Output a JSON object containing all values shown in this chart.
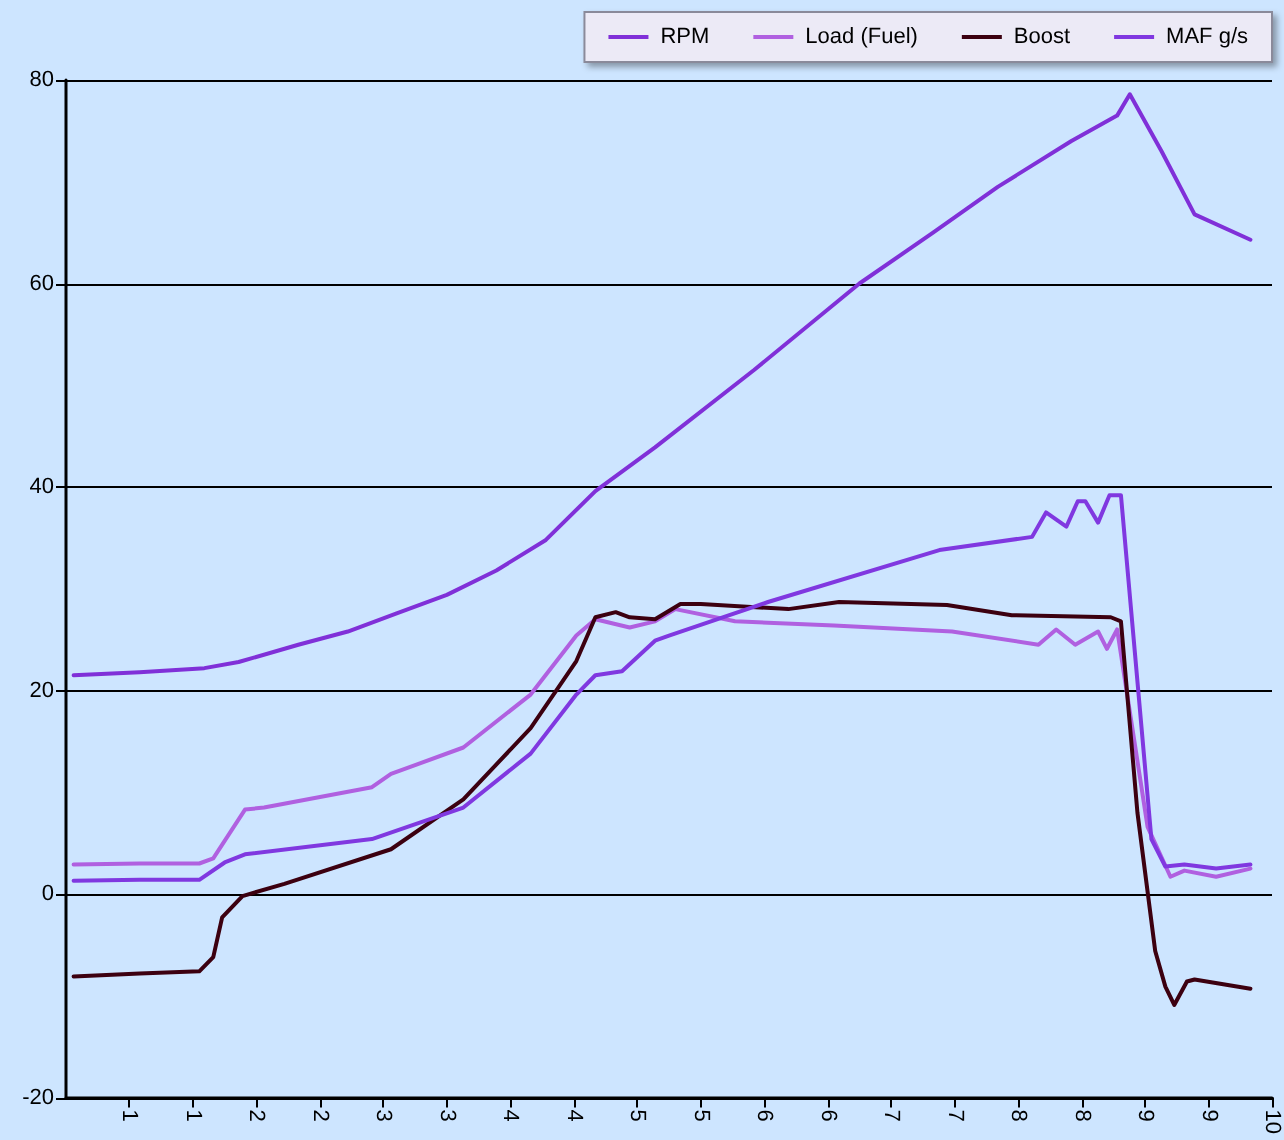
{
  "chart_data": {
    "type": "line",
    "series": [
      {
        "name": "RPM",
        "color": "#8030d8",
        "x": [
          0.06,
          0.58,
          1.09,
          1.36,
          1.83,
          2.22,
          2.61,
          3.0,
          3.39,
          3.78,
          4.17,
          4.64,
          5.42,
          6.25,
          6.83,
          7.34,
          7.92,
          8.28,
          8.38,
          8.63,
          8.89,
          9.33
        ],
        "values": [
          21.5,
          21.8,
          22.2,
          22.8,
          24.5,
          25.8,
          27.6,
          29.4,
          31.8,
          34.8,
          39.6,
          43.9,
          51.5,
          60,
          65,
          69.5,
          74,
          76.5,
          78.6,
          73,
          66.8,
          64.3
        ]
      },
      {
        "name": "Load (Fuel)",
        "color": "#b060e0",
        "x": [
          0.06,
          0.58,
          1.05,
          1.16,
          1.41,
          1.56,
          2.41,
          2.56,
          3.13,
          3.66,
          4.02,
          4.17,
          4.44,
          4.64,
          4.8,
          5.27,
          6.05,
          6.98,
          7.66,
          7.8,
          7.95,
          8.13,
          8.2,
          8.28,
          8.52,
          8.7,
          8.81,
          9.06,
          9.33
        ],
        "values": [
          2.9,
          3.0,
          3.0,
          3.5,
          8.3,
          8.5,
          10.5,
          11.8,
          14.4,
          19.6,
          25.4,
          27,
          26.2,
          26.8,
          28,
          26.8,
          26.4,
          25.8,
          24.5,
          26,
          24.5,
          25.8,
          24.1,
          26,
          6.6,
          1.7,
          2.3,
          1.7,
          2.5
        ]
      },
      {
        "name": "Boost",
        "color": "#3c0010",
        "x": [
          0.06,
          0.58,
          1.05,
          1.16,
          1.23,
          1.39,
          1.72,
          2.56,
          3.13,
          3.66,
          4.02,
          4.17,
          4.33,
          4.44,
          4.64,
          4.84,
          5.0,
          5.69,
          6.09,
          6.94,
          7.45,
          8.23,
          8.31,
          8.44,
          8.58,
          8.66,
          8.73,
          8.83,
          8.89,
          9.33
        ],
        "values": [
          -8.1,
          -7.8,
          -7.6,
          -6.2,
          -2.3,
          -0.2,
          1.0,
          4.4,
          9.3,
          16.3,
          22.9,
          27.2,
          27.7,
          27.2,
          27.0,
          28.5,
          28.5,
          28.0,
          28.7,
          28.4,
          27.4,
          27.2,
          26.8,
          8,
          -5.6,
          -9.1,
          -10.9,
          -8.6,
          -8.4,
          -9.3
        ]
      },
      {
        "name": "MAF g/s",
        "color": "#8038e0",
        "x": [
          0.06,
          0.58,
          1.05,
          1.25,
          1.41,
          2.41,
          3.13,
          3.66,
          4.02,
          4.17,
          4.38,
          4.64,
          4.75,
          5.53,
          6.88,
          7.61,
          7.72,
          7.88,
          7.97,
          8.03,
          8.13,
          8.22,
          8.31,
          8.55,
          8.66,
          8.81,
          9.06,
          9.33
        ],
        "values": [
          1.3,
          1.4,
          1.4,
          3.1,
          3.9,
          5.4,
          8.5,
          13.8,
          19.6,
          21.5,
          21.9,
          24.9,
          25.4,
          28.7,
          33.8,
          35.1,
          37.5,
          36.1,
          38.6,
          38.6,
          36.5,
          39.2,
          39.2,
          5.4,
          2.7,
          2.9,
          2.5,
          2.9
        ]
      }
    ],
    "xlim": [
      0,
      9.5
    ],
    "xticks": [
      {
        "value": 0.5,
        "label": "1"
      },
      {
        "value": 1,
        "label": "1"
      },
      {
        "value": 1.5,
        "label": "2"
      },
      {
        "value": 2,
        "label": "2"
      },
      {
        "value": 2.5,
        "label": "3"
      },
      {
        "value": 3,
        "label": "3"
      },
      {
        "value": 3.5,
        "label": "4"
      },
      {
        "value": 4,
        "label": "4"
      },
      {
        "value": 4.5,
        "label": "5"
      },
      {
        "value": 5,
        "label": "5"
      },
      {
        "value": 5.5,
        "label": "6"
      },
      {
        "value": 6,
        "label": "6"
      },
      {
        "value": 6.5,
        "label": "7"
      },
      {
        "value": 7,
        "label": "7"
      },
      {
        "value": 7.5,
        "label": "8"
      },
      {
        "value": 8,
        "label": "8"
      },
      {
        "value": 8.5,
        "label": "9"
      },
      {
        "value": 9,
        "label": "9"
      },
      {
        "value": 9.5,
        "label": "10"
      }
    ],
    "ylim": [
      -20,
      80
    ],
    "yticks": [
      -20,
      0,
      20,
      40,
      60,
      80
    ],
    "grid": "y",
    "legend": "top right",
    "marker": "none",
    "line_style": "solid"
  }
}
